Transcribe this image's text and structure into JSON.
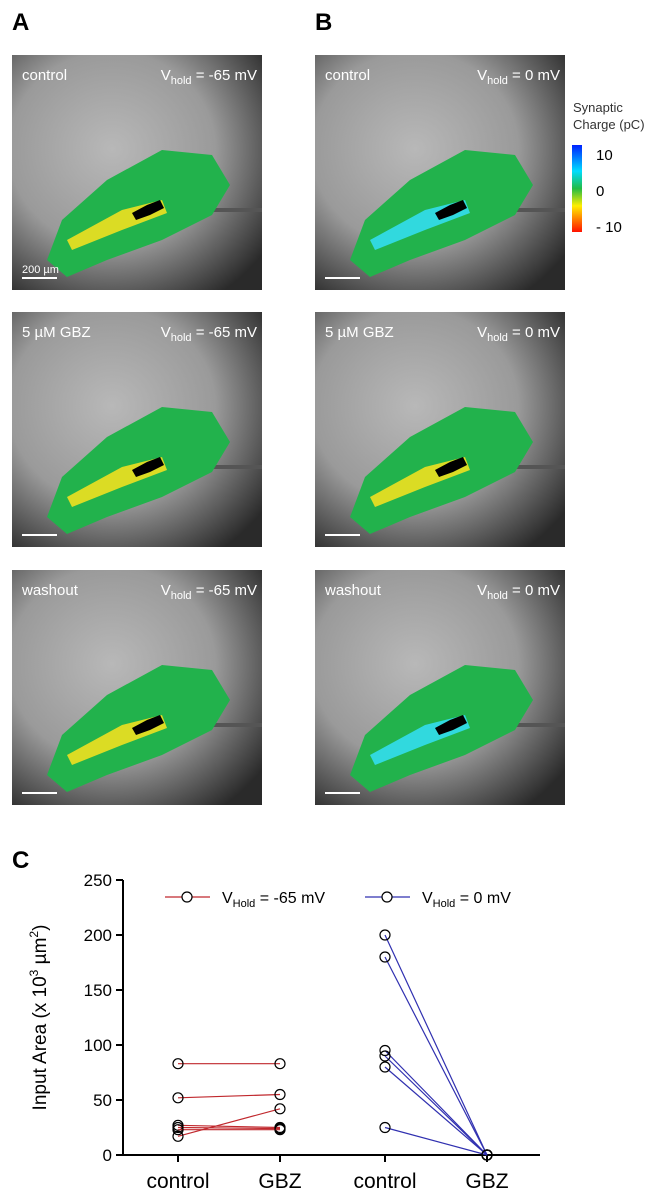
{
  "panel_letters": [
    "A",
    "B",
    "C"
  ],
  "images": [
    {
      "condition": "control",
      "v": "V",
      "sub": "hold",
      "rest": " = -65 mV"
    },
    {
      "condition": "control",
      "v": "V",
      "sub": "hold",
      "rest": " = 0 mV"
    },
    {
      "condition": "5 µM GBZ",
      "v": "V",
      "sub": "hold",
      "rest": " = -65 mV"
    },
    {
      "condition": "5 µM GBZ",
      "v": "V",
      "sub": "hold",
      "rest": " = 0 mV"
    },
    {
      "condition": "washout",
      "v": "V",
      "sub": "hold",
      "rest": " = -65 mV"
    },
    {
      "condition": "washout",
      "v": "V",
      "sub": "hold",
      "rest": " = 0 mV"
    }
  ],
  "scale_bar": "200 µm",
  "colorbar": {
    "title": [
      "Synaptic",
      "Charge (pC)"
    ],
    "ticks": [
      "10",
      "0",
      "- 10"
    ]
  },
  "chart_data": {
    "type": "paired",
    "ylabel": {
      "main": "Input Area (x 10",
      "sup1": "3",
      "mid": " µm",
      "sup2": "2",
      "end": ")"
    },
    "categories": [
      "control",
      "GBZ",
      "control",
      "GBZ"
    ],
    "ylim": [
      0,
      250
    ],
    "yticks": [
      0,
      50,
      100,
      150,
      200,
      250
    ],
    "series": [
      {
        "name": "V",
        "name_sub": "Hold",
        "name_rest": " = -65 mV",
        "color": "#c0282d",
        "categories": [
          0,
          1
        ],
        "pairs": [
          [
            83,
            83
          ],
          [
            52,
            55
          ],
          [
            17,
            42
          ],
          [
            27,
            25
          ],
          [
            25,
            24
          ],
          [
            23,
            23
          ]
        ]
      },
      {
        "name": "V",
        "name_sub": "Hold",
        "name_rest": " = 0 mV",
        "color": "#3030b0",
        "categories": [
          2,
          3
        ],
        "pairs": [
          [
            200,
            0
          ],
          [
            180,
            0
          ],
          [
            95,
            0
          ],
          [
            90,
            0
          ],
          [
            80,
            0
          ],
          [
            25,
            0
          ]
        ]
      }
    ]
  }
}
